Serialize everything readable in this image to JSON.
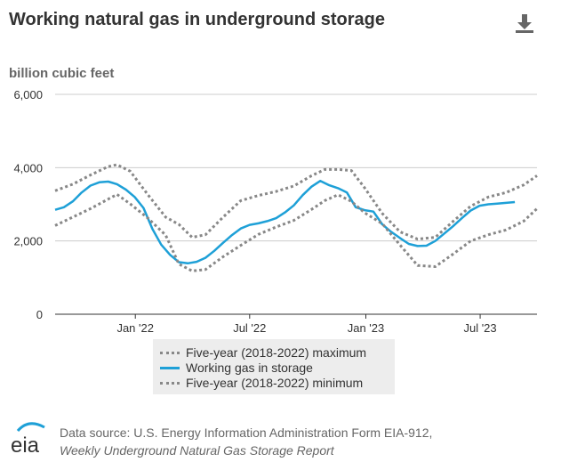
{
  "title": "Working natural gas in underground storage",
  "unit_label": "billion cubic feet",
  "download_icon": "download-icon",
  "colors": {
    "working_gas": "#1ea0d7",
    "five_year": "#888888",
    "grid": "#cccccc",
    "axis": "#333333"
  },
  "legend": {
    "max": "Five-year (2018-2022) maximum",
    "working": "Working gas in storage",
    "min": "Five-year (2018-2022) minimum"
  },
  "source": {
    "line1": "Data source: U.S. Energy Information Administration Form EIA-912,",
    "line2": "Weekly Underground Natural Gas Storage Report"
  },
  "chart_data": {
    "type": "line",
    "ylabel": "billion cubic feet",
    "ylim": [
      0,
      6000
    ],
    "yticks": [
      0,
      2000,
      4000,
      6000
    ],
    "ytick_labels": [
      "0",
      "2,000",
      "4,000",
      "6,000"
    ],
    "xlim": [
      "2021-08-27",
      "2023-09-29"
    ],
    "xticks": [
      "2022-01-01",
      "2022-07-01",
      "2023-01-01",
      "2023-07-01"
    ],
    "xtick_labels": [
      "Jan '22",
      "Jul '22",
      "Jan '23",
      "Jul '23"
    ],
    "grid": true,
    "legend_position": "bottom",
    "series": [
      {
        "name": "Five-year (2018-2022) maximum",
        "style": "dotted",
        "x": [
          "2021-08-27",
          "2021-09-24",
          "2021-10-22",
          "2021-11-19",
          "2021-12-03",
          "2021-12-24",
          "2022-01-21",
          "2022-02-18",
          "2022-03-11",
          "2022-04-01",
          "2022-04-22",
          "2022-05-20",
          "2022-06-17",
          "2022-07-15",
          "2022-08-12",
          "2022-09-09",
          "2022-10-07",
          "2022-10-28",
          "2022-11-18",
          "2022-12-09",
          "2022-12-30",
          "2023-01-27",
          "2023-02-24",
          "2023-03-24",
          "2023-04-21",
          "2023-05-19",
          "2023-06-16",
          "2023-07-14",
          "2023-08-11",
          "2023-09-08",
          "2023-09-29"
        ],
        "values": [
          3370,
          3550,
          3800,
          4030,
          4080,
          3900,
          3260,
          2650,
          2450,
          2100,
          2170,
          2650,
          3100,
          3240,
          3350,
          3500,
          3780,
          3950,
          3950,
          3920,
          3450,
          2750,
          2250,
          2050,
          2100,
          2530,
          2950,
          3200,
          3320,
          3530,
          3780
        ]
      },
      {
        "name": "Working gas in storage",
        "style": "solid",
        "x": [
          "2021-08-27",
          "2021-09-10",
          "2021-09-24",
          "2021-10-08",
          "2021-10-22",
          "2021-11-05",
          "2021-11-19",
          "2021-12-03",
          "2021-12-17",
          "2021-12-31",
          "2022-01-14",
          "2022-01-28",
          "2022-02-11",
          "2022-02-25",
          "2022-03-11",
          "2022-03-25",
          "2022-04-08",
          "2022-04-22",
          "2022-05-06",
          "2022-05-20",
          "2022-06-03",
          "2022-06-17",
          "2022-07-01",
          "2022-07-15",
          "2022-07-29",
          "2022-08-12",
          "2022-08-26",
          "2022-09-09",
          "2022-09-23",
          "2022-10-07",
          "2022-10-21",
          "2022-11-04",
          "2022-11-18",
          "2022-12-02",
          "2022-12-16",
          "2022-12-30",
          "2023-01-13",
          "2023-01-27",
          "2023-02-10",
          "2023-02-24",
          "2023-03-10",
          "2023-03-24",
          "2023-04-07",
          "2023-04-21",
          "2023-05-05",
          "2023-05-19",
          "2023-06-02",
          "2023-06-16",
          "2023-06-30",
          "2023-07-14",
          "2023-07-28",
          "2023-08-11",
          "2023-08-25"
        ],
        "values": [
          2850,
          2920,
          3080,
          3320,
          3510,
          3600,
          3620,
          3550,
          3400,
          3200,
          2900,
          2330,
          1900,
          1620,
          1420,
          1390,
          1430,
          1540,
          1730,
          1950,
          2160,
          2340,
          2440,
          2480,
          2540,
          2620,
          2780,
          2970,
          3250,
          3480,
          3640,
          3520,
          3440,
          3320,
          2920,
          2840,
          2800,
          2450,
          2250,
          2080,
          1920,
          1860,
          1870,
          2000,
          2200,
          2400,
          2620,
          2830,
          2960,
          3000,
          3020,
          3040,
          3060
        ]
      },
      {
        "name": "Five-year (2018-2022) minimum",
        "style": "dotted",
        "x": [
          "2021-08-27",
          "2021-09-24",
          "2021-10-22",
          "2021-11-19",
          "2021-12-03",
          "2021-12-24",
          "2022-01-21",
          "2022-02-18",
          "2022-03-11",
          "2022-04-01",
          "2022-04-22",
          "2022-05-20",
          "2022-06-17",
          "2022-07-15",
          "2022-08-12",
          "2022-09-09",
          "2022-10-07",
          "2022-10-28",
          "2022-11-18",
          "2022-12-09",
          "2022-12-30",
          "2023-01-27",
          "2023-02-24",
          "2023-03-24",
          "2023-04-21",
          "2023-05-19",
          "2023-06-16",
          "2023-07-14",
          "2023-08-11",
          "2023-09-08",
          "2023-09-29"
        ],
        "values": [
          2420,
          2650,
          2880,
          3140,
          3270,
          3010,
          2620,
          2160,
          1370,
          1180,
          1220,
          1570,
          1880,
          2180,
          2380,
          2560,
          2860,
          3100,
          3260,
          3080,
          2770,
          2470,
          1890,
          1330,
          1300,
          1640,
          2000,
          2170,
          2300,
          2540,
          2880
        ]
      }
    ]
  }
}
